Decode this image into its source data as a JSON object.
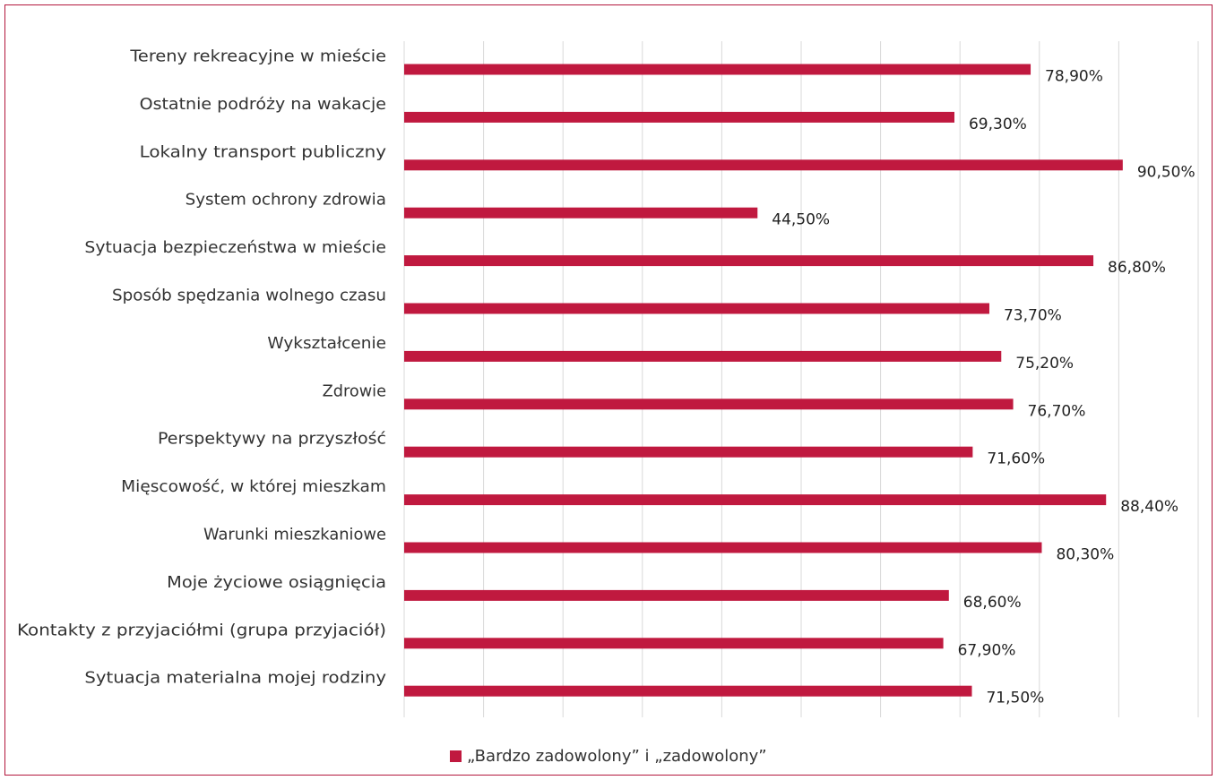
{
  "chart_data": {
    "type": "bar",
    "orientation": "horizontal",
    "categories": [
      "Tereny rekreacyjne w mieście",
      "Ostatnie podróży na wakacje",
      "Lokalny transport publiczny",
      "System ochrony zdrowia",
      "Sytuacja bezpieczeństwa w mieście",
      "Sposób spędzania wolnego czasu",
      "Wykształcenie",
      "Zdrowie",
      "Perspektywy na przyszłość",
      "Mięscowość, w której mieszkam",
      "Warunki mieszkaniowe",
      "Moje życiowe osiągnięcia",
      "Kontakty z przyjaciółmi (grupa przyjaciół)",
      "Sytuacja materialna mojej rodziny"
    ],
    "series": [
      {
        "name": "„Bardzo zadowolony” i „zadowolony”",
        "values": [
          78.9,
          69.3,
          90.5,
          44.5,
          86.8,
          73.7,
          75.2,
          76.7,
          71.6,
          88.4,
          80.3,
          68.6,
          67.9,
          71.5
        ],
        "value_labels": [
          "78,90%",
          "69,30%",
          "90,50%",
          "44,50%",
          "86,80%",
          "73,70%",
          "75,20%",
          "76,70%",
          "71,60%",
          "88,40%",
          "80,30%",
          "68,60%",
          "67,90%",
          "71,50%"
        ]
      }
    ],
    "xlim": [
      0,
      100
    ],
    "x_grid_step": 10,
    "grid": true,
    "tick_labels_shown": false,
    "title": "",
    "xlabel": "",
    "ylabel": "",
    "legend_position": "bottom-center",
    "colors": {
      "bar": "#c0193f",
      "grid": "#d9d9d9",
      "frame": "#b3163c"
    }
  }
}
